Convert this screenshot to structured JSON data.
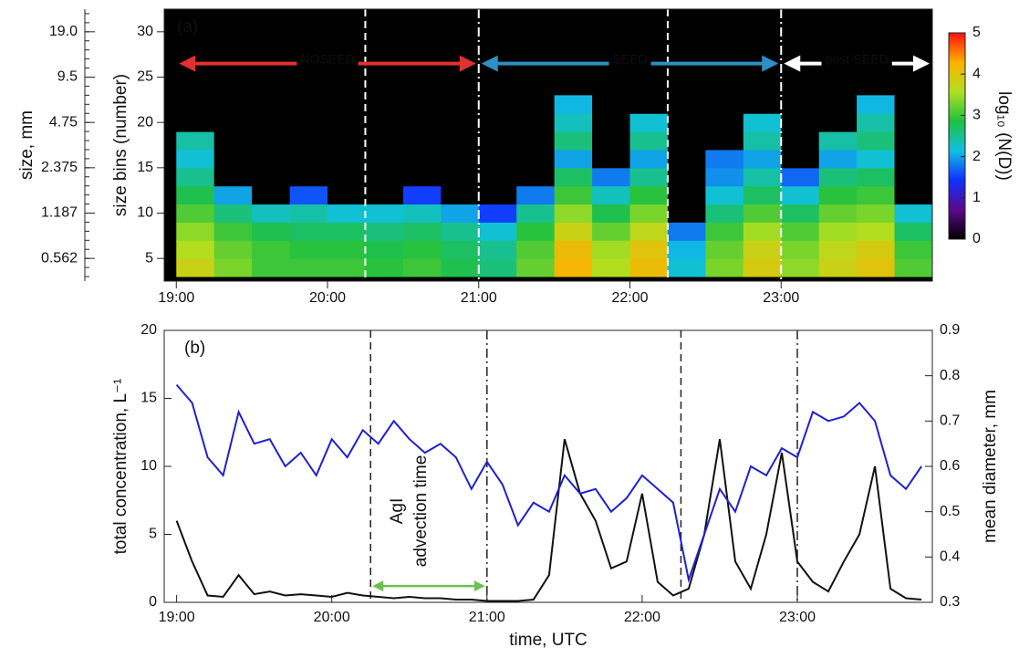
{
  "chart_data": [
    {
      "type": "heatmap",
      "panel_label": "(a)",
      "ylabel": "size bins (number)",
      "size_label": "size, mm",
      "size_ticks": [
        {
          "value": 5,
          "label": "0.562"
        },
        {
          "value": 10,
          "label": "1.187"
        },
        {
          "value": 15,
          "label": "2.375"
        },
        {
          "value": 20,
          "label": "4.75"
        },
        {
          "value": 25,
          "label": "9.5"
        },
        {
          "value": 30,
          "label": "19.0"
        }
      ],
      "xlim": [
        18.92,
        24.0
      ],
      "ylim": [
        2.5,
        32.5
      ],
      "xticks": [
        {
          "value": 19,
          "label": "19:00"
        },
        {
          "value": 20,
          "label": "20:00"
        },
        {
          "value": 21,
          "label": "21:00"
        },
        {
          "value": 22,
          "label": "22:00"
        },
        {
          "value": 23,
          "label": "23:00"
        }
      ],
      "yticks": [
        5,
        10,
        15,
        20,
        25,
        30
      ],
      "xbins": [
        19.0,
        19.25,
        19.5,
        19.75,
        20.0,
        20.25,
        20.5,
        20.75,
        21.0,
        21.25,
        21.5,
        21.75,
        22.0,
        22.25,
        22.5,
        22.75,
        23.0,
        23.25,
        23.5,
        23.75,
        24.0
      ],
      "ybins": [
        3,
        5,
        7,
        9,
        11,
        13,
        15,
        17,
        19,
        21,
        23
      ],
      "z": [
        [
          3.8,
          3.3,
          3.0,
          3.0,
          3.0,
          2.9,
          3.0,
          2.8,
          2.6,
          3.2,
          4.2,
          3.6,
          4.1,
          2.2,
          3.3,
          3.9,
          3.4,
          3.8,
          4.0,
          3.1
        ],
        [
          3.6,
          3.2,
          3.0,
          2.9,
          2.9,
          2.8,
          2.9,
          2.7,
          2.5,
          3.1,
          4.1,
          3.5,
          4.0,
          2.1,
          3.2,
          3.8,
          3.3,
          3.7,
          3.9,
          3.0
        ],
        [
          3.4,
          3.0,
          2.8,
          2.7,
          2.7,
          2.6,
          2.7,
          2.5,
          2.2,
          2.9,
          3.8,
          3.2,
          3.7,
          1.8,
          3.0,
          3.5,
          3.1,
          3.5,
          3.6,
          2.7
        ],
        [
          3.1,
          2.6,
          2.3,
          2.4,
          2.2,
          2.2,
          2.3,
          2.0,
          1.5,
          2.5,
          3.4,
          2.8,
          3.3,
          0,
          2.6,
          3.1,
          2.7,
          3.2,
          3.3,
          2.2
        ],
        [
          2.8,
          2.0,
          0,
          1.6,
          0,
          0,
          1.5,
          0,
          0,
          1.8,
          3.0,
          2.3,
          2.9,
          0,
          2.2,
          2.7,
          2.2,
          2.9,
          3.0,
          0
        ],
        [
          2.5,
          0,
          0,
          0,
          0,
          0,
          0,
          0,
          0,
          0,
          2.7,
          1.8,
          2.5,
          0,
          1.9,
          2.4,
          1.7,
          2.6,
          2.7,
          0
        ],
        [
          2.2,
          0,
          0,
          0,
          0,
          0,
          0,
          0,
          0,
          0,
          2.0,
          0,
          2.0,
          0,
          1.8,
          2.0,
          0,
          2.0,
          2.2,
          0
        ],
        [
          2.4,
          0,
          0,
          0,
          0,
          0,
          0,
          0,
          0,
          0,
          2.6,
          0,
          2.5,
          0,
          0,
          2.4,
          0,
          2.4,
          2.6,
          0
        ],
        [
          0,
          0,
          0,
          0,
          0,
          0,
          0,
          0,
          0,
          0,
          2.3,
          0,
          2.2,
          0,
          0,
          2.2,
          0,
          0,
          2.4,
          0
        ],
        [
          0,
          0,
          0,
          0,
          0,
          0,
          0,
          0,
          0,
          0,
          2.1,
          0,
          0,
          0,
          0,
          0,
          0,
          0,
          2.1,
          0
        ]
      ],
      "zlim": [
        0,
        5
      ],
      "zticks": [
        0,
        1,
        2,
        3,
        4,
        5
      ],
      "zlabel": "log₁₀ (N(D))",
      "colormap": [
        "#000000",
        "#5a0a8c",
        "#1030ff",
        "#10c0e0",
        "#20c040",
        "#b0e020",
        "#ffb000",
        "#ff1010"
      ],
      "markers": [
        {
          "x": 20.25,
          "style": "dashed"
        },
        {
          "x": 21.0,
          "style": "dashdot"
        },
        {
          "x": 22.25,
          "style": "dashed"
        },
        {
          "x": 23.0,
          "style": "dashdot"
        }
      ],
      "periods": [
        {
          "label": "NOSEED",
          "start": 19.0,
          "end": 21.0,
          "color": "#e03030"
        },
        {
          "label": "SEED",
          "start": 21.0,
          "end": 23.0,
          "color": "#2e8fc4"
        },
        {
          "label": "post-SEED",
          "start": 23.0,
          "end": 24.0,
          "color": "#ffffff"
        }
      ],
      "period_y": 26.5
    },
    {
      "type": "line",
      "panel_label": "(b)",
      "xlabel": "time, UTC",
      "ylabel": "total concentration, L⁻¹",
      "y2label": "mean diameter, mm",
      "xlim": [
        18.92,
        23.87
      ],
      "ylim": [
        0,
        20
      ],
      "y2lim": [
        0.3,
        0.9
      ],
      "xticks": [
        {
          "value": 19,
          "label": "19:00"
        },
        {
          "value": 20,
          "label": "20:00"
        },
        {
          "value": 21,
          "label": "21:00"
        },
        {
          "value": 22,
          "label": "22:00"
        },
        {
          "value": 23,
          "label": "23:00"
        }
      ],
      "yticks": [
        0,
        5,
        10,
        15,
        20
      ],
      "y2ticks": [
        0.3,
        0.4,
        0.5,
        0.6,
        0.7,
        0.8,
        0.9
      ],
      "x": [
        19.0,
        19.1,
        19.2,
        19.3,
        19.4,
        19.5,
        19.6,
        19.7,
        19.8,
        19.9,
        20.0,
        20.1,
        20.2,
        20.3,
        20.4,
        20.5,
        20.6,
        20.7,
        20.8,
        20.9,
        21.0,
        21.1,
        21.2,
        21.3,
        21.4,
        21.5,
        21.6,
        21.7,
        21.8,
        21.9,
        22.0,
        22.1,
        22.2,
        22.3,
        22.4,
        22.5,
        22.6,
        22.7,
        22.8,
        22.9,
        23.0,
        23.1,
        23.2,
        23.3,
        23.4,
        23.5,
        23.6,
        23.7,
        23.8
      ],
      "series": [
        {
          "name": "total concentration",
          "color": "#111111",
          "values": [
            6,
            3,
            0.5,
            0.4,
            2.0,
            0.6,
            0.8,
            0.5,
            0.6,
            0.5,
            0.4,
            0.7,
            0.5,
            0.4,
            0.3,
            0.4,
            0.3,
            0.3,
            0.2,
            0.2,
            0.1,
            0.1,
            0.1,
            0.2,
            2.0,
            12,
            8,
            6,
            2.5,
            3,
            8,
            1.5,
            0.5,
            1.0,
            5,
            12,
            3,
            1,
            5,
            11,
            3,
            1.5,
            0.8,
            3,
            5,
            10,
            1.0,
            0.3,
            0.2
          ]
        },
        {
          "name": "mean diameter",
          "color": "#2020d0",
          "axis": "y2",
          "values": [
            0.78,
            0.74,
            0.62,
            0.58,
            0.72,
            0.65,
            0.66,
            0.6,
            0.63,
            0.58,
            0.66,
            0.62,
            0.68,
            0.65,
            0.7,
            0.66,
            0.63,
            0.65,
            0.62,
            0.55,
            0.61,
            0.56,
            0.47,
            0.52,
            0.5,
            0.58,
            0.54,
            0.55,
            0.5,
            0.53,
            0.58,
            0.55,
            0.52,
            0.35,
            0.45,
            0.55,
            0.5,
            0.6,
            0.58,
            0.64,
            0.62,
            0.72,
            0.7,
            0.71,
            0.74,
            0.7,
            0.58,
            0.55,
            0.6
          ]
        }
      ],
      "markers": [
        {
          "x": 20.25,
          "style": "dashed"
        },
        {
          "x": 21.0,
          "style": "dashdot"
        },
        {
          "x": 22.25,
          "style": "dashed"
        },
        {
          "x": 23.0,
          "style": "dashdot"
        }
      ],
      "annotation_lines": [
        "AgI",
        "advection time"
      ],
      "annotation_color": "#6cc050",
      "annotation_arrow": {
        "start": 20.25,
        "end": 21.0,
        "y": 1.2
      }
    }
  ]
}
